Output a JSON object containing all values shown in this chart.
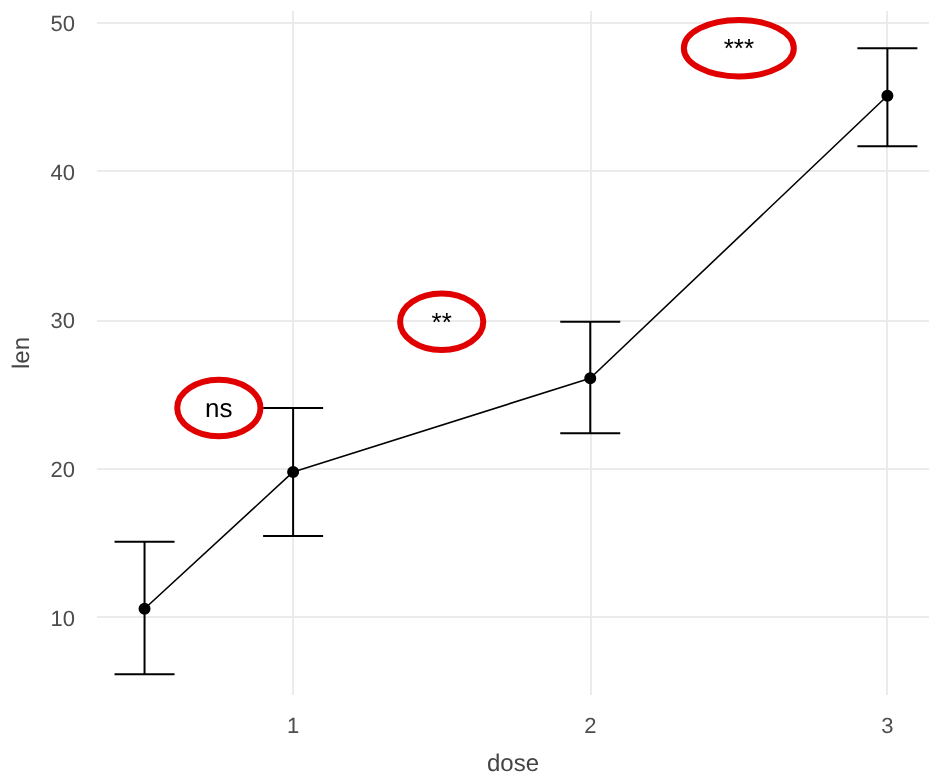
{
  "chart_data": {
    "type": "line",
    "xlabel": "dose",
    "ylabel": "len",
    "x": [
      0.5,
      1,
      2,
      3
    ],
    "series": [
      {
        "color": "#000000",
        "values": [
          10.6,
          19.8,
          26.1,
          45.1
        ],
        "errors": [
          [
            6.2,
            15.1
          ],
          [
            15.5,
            24.1
          ],
          [
            22.4,
            29.9
          ],
          [
            41.7,
            48.3
          ]
        ]
      }
    ],
    "xlim": [
      0.34,
      3.14
    ],
    "ylim": [
      4.8,
      50.8
    ],
    "xticks": [
      1,
      2,
      3
    ],
    "yticks": [
      10,
      20,
      30,
      40,
      50
    ],
    "grid": true,
    "marker": "circle",
    "line_style": "solid",
    "annotations": [
      "ns",
      "**",
      "***"
    ]
  }
}
